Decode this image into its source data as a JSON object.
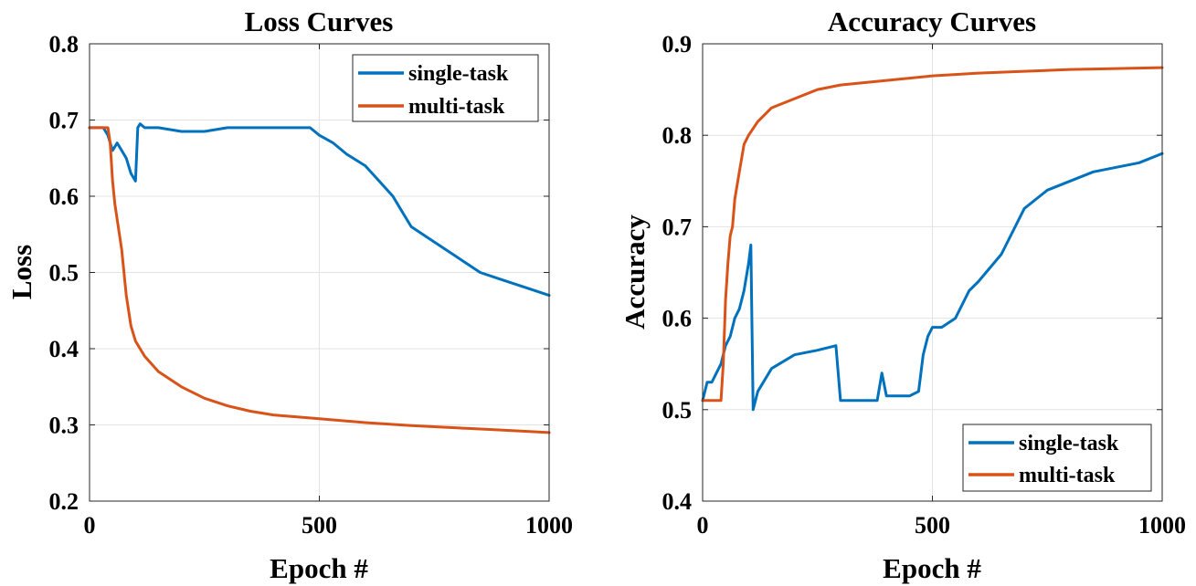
{
  "colors": {
    "single": "#0072BD",
    "multi": "#D95319"
  },
  "chart_data": [
    {
      "type": "line",
      "title": "Loss Curves",
      "xlabel": "Epoch #",
      "ylabel": "Loss",
      "xlim": [
        0,
        1000
      ],
      "ylim": [
        0.2,
        0.8
      ],
      "xticks": [
        0,
        500,
        1000
      ],
      "xtick_labels": [
        "0",
        "500",
        "1000"
      ],
      "yticks": [
        0.2,
        0.3,
        0.4,
        0.5,
        0.6,
        0.7,
        0.8
      ],
      "ytick_labels": [
        "0.2",
        "0.3",
        "0.4",
        "0.5",
        "0.6",
        "0.7",
        "0.8"
      ],
      "grid": true,
      "legend": {
        "position": "top-right",
        "entries": [
          "single-task",
          "multi-task"
        ]
      },
      "series": [
        {
          "name": "single-task",
          "x": [
            0,
            10,
            20,
            30,
            40,
            50,
            60,
            70,
            80,
            90,
            100,
            105,
            110,
            120,
            150,
            200,
            250,
            300,
            350,
            400,
            450,
            480,
            500,
            530,
            560,
            600,
            630,
            660,
            680,
            700,
            750,
            800,
            850,
            900,
            950,
            1000
          ],
          "y": [
            0.69,
            0.69,
            0.69,
            0.69,
            0.68,
            0.66,
            0.67,
            0.66,
            0.65,
            0.63,
            0.62,
            0.69,
            0.695,
            0.69,
            0.69,
            0.685,
            0.685,
            0.69,
            0.69,
            0.69,
            0.69,
            0.69,
            0.68,
            0.67,
            0.655,
            0.64,
            0.62,
            0.6,
            0.58,
            0.56,
            0.54,
            0.52,
            0.5,
            0.49,
            0.48,
            0.47
          ]
        },
        {
          "name": "multi-task",
          "x": [
            0,
            10,
            20,
            30,
            40,
            45,
            50,
            55,
            60,
            70,
            80,
            90,
            100,
            120,
            150,
            200,
            250,
            300,
            350,
            400,
            500,
            600,
            700,
            800,
            900,
            1000
          ],
          "y": [
            0.69,
            0.69,
            0.69,
            0.69,
            0.69,
            0.67,
            0.62,
            0.59,
            0.57,
            0.53,
            0.47,
            0.43,
            0.41,
            0.39,
            0.37,
            0.35,
            0.335,
            0.325,
            0.318,
            0.313,
            0.308,
            0.303,
            0.299,
            0.296,
            0.293,
            0.29
          ]
        }
      ]
    },
    {
      "type": "line",
      "title": "Accuracy Curves",
      "xlabel": "Epoch #",
      "ylabel": "Accuracy",
      "xlim": [
        0,
        1000
      ],
      "ylim": [
        0.4,
        0.9
      ],
      "xticks": [
        0,
        500,
        1000
      ],
      "xtick_labels": [
        "0",
        "500",
        "1000"
      ],
      "yticks": [
        0.4,
        0.5,
        0.6,
        0.7,
        0.8,
        0.9
      ],
      "ytick_labels": [
        "0.4",
        "0.5",
        "0.6",
        "0.7",
        "0.8",
        "0.9"
      ],
      "grid": true,
      "legend": {
        "position": "bottom-right",
        "entries": [
          "single-task",
          "multi-task"
        ]
      },
      "series": [
        {
          "name": "single-task",
          "x": [
            0,
            10,
            20,
            30,
            40,
            50,
            60,
            70,
            80,
            90,
            100,
            105,
            110,
            120,
            150,
            200,
            250,
            290,
            300,
            350,
            380,
            390,
            400,
            450,
            470,
            480,
            490,
            500,
            520,
            550,
            580,
            600,
            650,
            700,
            750,
            800,
            850,
            900,
            950,
            1000
          ],
          "y": [
            0.51,
            0.53,
            0.53,
            0.54,
            0.55,
            0.57,
            0.58,
            0.6,
            0.61,
            0.63,
            0.66,
            0.68,
            0.5,
            0.52,
            0.545,
            0.56,
            0.565,
            0.57,
            0.51,
            0.51,
            0.51,
            0.54,
            0.515,
            0.515,
            0.52,
            0.56,
            0.58,
            0.59,
            0.59,
            0.6,
            0.63,
            0.64,
            0.67,
            0.72,
            0.74,
            0.75,
            0.76,
            0.765,
            0.77,
            0.78
          ]
        },
        {
          "name": "multi-task",
          "x": [
            0,
            10,
            20,
            30,
            40,
            45,
            50,
            55,
            60,
            65,
            70,
            80,
            90,
            100,
            120,
            150,
            200,
            250,
            300,
            400,
            500,
            600,
            700,
            800,
            900,
            1000
          ],
          "y": [
            0.51,
            0.51,
            0.51,
            0.51,
            0.51,
            0.55,
            0.62,
            0.66,
            0.69,
            0.7,
            0.73,
            0.76,
            0.79,
            0.8,
            0.815,
            0.83,
            0.84,
            0.85,
            0.855,
            0.86,
            0.865,
            0.868,
            0.87,
            0.872,
            0.873,
            0.874
          ]
        }
      ]
    }
  ]
}
